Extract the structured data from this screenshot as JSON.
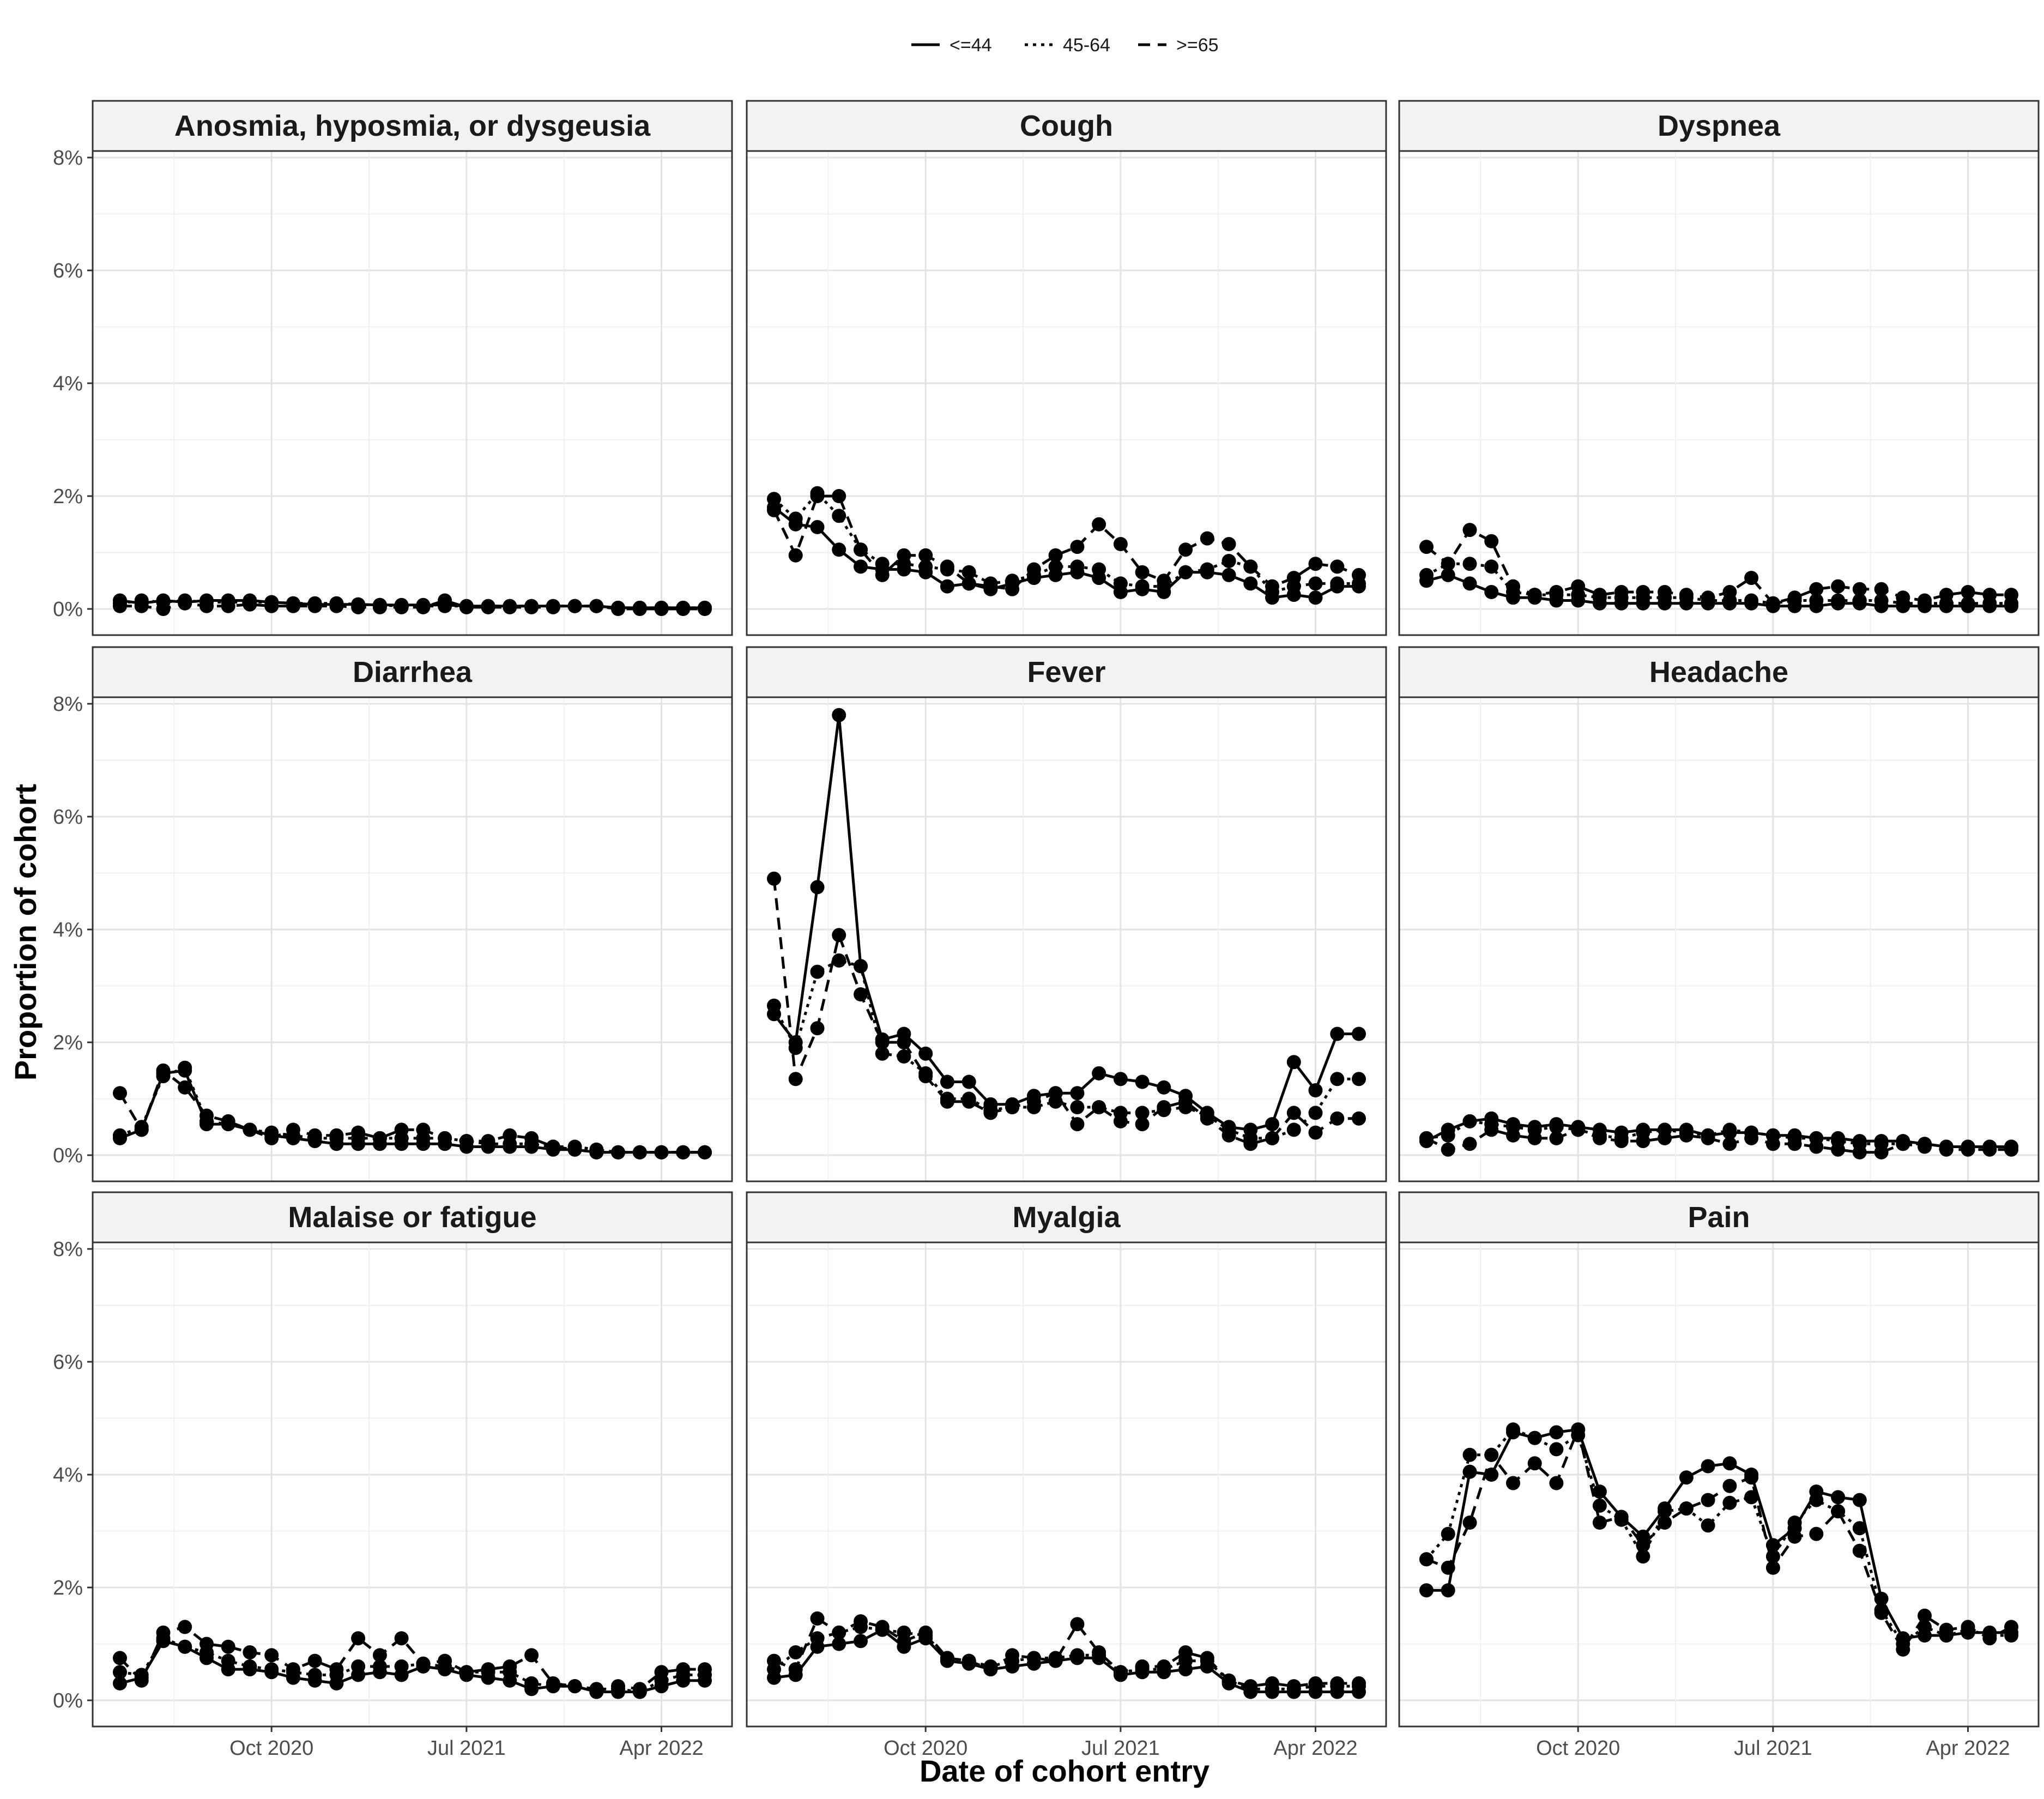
{
  "chart_data": {
    "type": "line",
    "xlabel": "Date of cohort entry",
    "ylabel": "Proportion of cohort",
    "x_start": "2020-03",
    "x_end": "2022-06",
    "xticks": [
      {
        "date": "2020-10",
        "label": "Oct 2020"
      },
      {
        "date": "2021-07",
        "label": "Jul 2021"
      },
      {
        "date": "2022-04",
        "label": "Apr 2022"
      }
    ],
    "ylim": [
      0,
      8
    ],
    "yticks": [
      0,
      2,
      4,
      6,
      8
    ],
    "ytick_labels": [
      "0%",
      "2%",
      "4%",
      "6%",
      "8%"
    ],
    "grid": true,
    "legend_position": "top",
    "legend": [
      {
        "label": "<=44",
        "dash": "solid"
      },
      {
        "label": "45-64",
        "dash": "dotted"
      },
      {
        "label": ">=65",
        "dash": "dashed"
      }
    ],
    "months": [
      "2020-03",
      "2020-04",
      "2020-05",
      "2020-06",
      "2020-07",
      "2020-08",
      "2020-09",
      "2020-10",
      "2020-11",
      "2020-12",
      "2021-01",
      "2021-02",
      "2021-03",
      "2021-04",
      "2021-05",
      "2021-06",
      "2021-07",
      "2021-08",
      "2021-09",
      "2021-10",
      "2021-11",
      "2021-12",
      "2022-01",
      "2022-02",
      "2022-03",
      "2022-04",
      "2022-05",
      "2022-06"
    ],
    "panels": [
      {
        "title": "Anosmia, hyposmia, or dysgeusia",
        "series": [
          {
            "name": "<=44",
            "values": [
              0.15,
              0.1,
              0.15,
              0.12,
              0.15,
              0.15,
              0.15,
              0.12,
              0.1,
              0.08,
              0.08,
              0.08,
              0.07,
              0.07,
              0.07,
              0.07,
              0.05,
              0.05,
              0.05,
              0.05,
              0.05,
              0.05,
              0.05,
              0.02,
              0.02,
              0.02,
              0.02,
              0.02
            ]
          },
          {
            "name": "45-64",
            "values": [
              0.1,
              0.15,
              0.12,
              0.15,
              0.12,
              0.12,
              0.12,
              0.12,
              0.1,
              0.1,
              0.1,
              0.08,
              0.07,
              0.05,
              0.05,
              0.05,
              0.05,
              0.05,
              0.05,
              0.05,
              0.05,
              0.05,
              0.05,
              0.02,
              0.02,
              0.02,
              0.02,
              0.02
            ]
          },
          {
            "name": ">=65",
            "values": [
              0.05,
              0.05,
              0.0,
              0.1,
              0.05,
              0.05,
              0.08,
              0.05,
              0.05,
              0.05,
              0.05,
              0.03,
              0.03,
              0.03,
              0.03,
              0.15,
              0.03,
              0.03,
              0.03,
              0.03,
              0.03,
              0.05,
              0.05,
              0.0,
              0.0,
              0.0,
              0.0,
              0.0
            ]
          }
        ]
      },
      {
        "title": "Cough",
        "series": [
          {
            "name": "<=44",
            "values": [
              1.8,
              1.5,
              1.45,
              1.05,
              0.75,
              0.7,
              0.7,
              0.65,
              0.4,
              0.45,
              0.35,
              0.45,
              0.55,
              0.6,
              0.65,
              0.55,
              0.3,
              0.35,
              0.3,
              0.65,
              0.65,
              0.6,
              0.45,
              0.2,
              0.25,
              0.2,
              0.4,
              0.4
            ]
          },
          {
            "name": "45-64",
            "values": [
              1.95,
              1.6,
              2.05,
              1.65,
              1.05,
              0.8,
              0.8,
              0.75,
              0.7,
              0.65,
              0.45,
              0.5,
              0.6,
              0.75,
              0.75,
              0.7,
              0.45,
              0.4,
              0.4,
              0.65,
              0.7,
              0.85,
              0.75,
              0.3,
              0.4,
              0.45,
              0.45,
              0.45
            ]
          },
          {
            "name": ">=65",
            "values": [
              1.75,
              0.95,
              2.0,
              2.0,
              1.05,
              0.6,
              0.95,
              0.95,
              0.75,
              0.45,
              0.4,
              0.35,
              0.7,
              0.95,
              1.1,
              1.5,
              1.15,
              0.65,
              0.5,
              1.05,
              1.25,
              1.15,
              0.75,
              0.4,
              0.55,
              0.8,
              0.75,
              0.6
            ]
          }
        ]
      },
      {
        "title": "Dyspnea",
        "series": [
          {
            "name": "<=44",
            "values": [
              0.5,
              0.6,
              0.45,
              0.3,
              0.2,
              0.2,
              0.15,
              0.15,
              0.1,
              0.1,
              0.1,
              0.1,
              0.1,
              0.1,
              0.1,
              0.1,
              0.05,
              0.05,
              0.05,
              0.1,
              0.1,
              0.05,
              0.05,
              0.05,
              0.05,
              0.05,
              0.05,
              0.05
            ]
          },
          {
            "name": "45-64",
            "values": [
              0.6,
              0.8,
              0.8,
              0.75,
              0.3,
              0.25,
              0.25,
              0.25,
              0.2,
              0.2,
              0.2,
              0.2,
              0.2,
              0.15,
              0.15,
              0.15,
              0.1,
              0.15,
              0.15,
              0.15,
              0.15,
              0.15,
              0.1,
              0.1,
              0.1,
              0.1,
              0.1,
              0.1
            ]
          },
          {
            "name": ">=65",
            "values": [
              1.1,
              0.8,
              1.4,
              1.2,
              0.4,
              0.25,
              0.3,
              0.4,
              0.25,
              0.3,
              0.3,
              0.3,
              0.25,
              0.2,
              0.3,
              0.55,
              0.1,
              0.2,
              0.35,
              0.4,
              0.35,
              0.35,
              0.2,
              0.15,
              0.25,
              0.3,
              0.25,
              0.25
            ]
          }
        ]
      },
      {
        "title": "Diarrhea",
        "series": [
          {
            "name": "<=44",
            "values": [
              0.3,
              0.45,
              1.45,
              1.5,
              0.55,
              0.55,
              0.45,
              0.35,
              0.3,
              0.25,
              0.2,
              0.2,
              0.2,
              0.2,
              0.2,
              0.2,
              0.15,
              0.15,
              0.15,
              0.15,
              0.1,
              0.1,
              0.05,
              0.05,
              0.05,
              0.05,
              0.05,
              0.05
            ]
          },
          {
            "name": "45-64",
            "values": [
              0.35,
              0.5,
              1.4,
              1.55,
              0.6,
              0.55,
              0.45,
              0.4,
              0.35,
              0.3,
              0.3,
              0.3,
              0.3,
              0.3,
              0.3,
              0.3,
              0.25,
              0.2,
              0.2,
              0.2,
              0.15,
              0.15,
              0.1,
              0.05,
              0.05,
              0.05,
              0.05,
              0.05
            ]
          },
          {
            "name": ">=65",
            "values": [
              1.1,
              0.45,
              1.5,
              1.2,
              0.7,
              0.6,
              0.45,
              0.3,
              0.45,
              0.35,
              0.35,
              0.4,
              0.3,
              0.45,
              0.45,
              0.3,
              0.25,
              0.25,
              0.35,
              0.3,
              0.15,
              0.1,
              0.05,
              0.05,
              0.05,
              0.05,
              0.05,
              0.05
            ]
          }
        ]
      },
      {
        "title": "Fever",
        "series": [
          {
            "name": "<=44",
            "values": [
              2.5,
              2.0,
              4.75,
              7.8,
              3.35,
              2.05,
              2.15,
              1.8,
              1.3,
              1.3,
              0.9,
              0.9,
              1.05,
              1.1,
              1.1,
              1.45,
              1.35,
              1.3,
              1.2,
              1.05,
              0.75,
              0.5,
              0.45,
              0.55,
              1.65,
              1.15,
              2.15,
              2.15
            ]
          },
          {
            "name": "45-64",
            "values": [
              2.65,
              1.9,
              3.25,
              3.45,
              3.35,
              1.8,
              1.75,
              1.45,
              1.0,
              1.0,
              0.8,
              0.85,
              0.85,
              0.95,
              0.85,
              0.85,
              0.75,
              0.75,
              0.8,
              0.85,
              0.7,
              0.45,
              0.3,
              0.3,
              0.45,
              0.75,
              1.35,
              1.35
            ]
          },
          {
            "name": ">=65",
            "values": [
              4.9,
              1.35,
              2.25,
              3.9,
              2.85,
              2.0,
              2.0,
              1.4,
              0.95,
              0.95,
              0.75,
              0.85,
              0.95,
              1.1,
              0.55,
              0.85,
              0.6,
              0.55,
              0.85,
              0.95,
              0.65,
              0.35,
              0.2,
              0.3,
              0.75,
              0.4,
              0.65,
              0.65
            ]
          }
        ]
      },
      {
        "title": "Headache",
        "series": [
          {
            "name": "<=44",
            "values": [
              0.25,
              0.45,
              0.6,
              0.65,
              0.55,
              0.5,
              0.55,
              0.5,
              0.45,
              0.4,
              0.45,
              0.45,
              0.45,
              0.35,
              0.4,
              0.4,
              0.35,
              0.35,
              0.3,
              0.3,
              0.25,
              0.25,
              0.25,
              0.2,
              0.15,
              0.15,
              0.15,
              0.15
            ]
          },
          {
            "name": "45-64",
            "values": [
              0.3,
              0.35,
              0.6,
              0.55,
              0.5,
              0.45,
              0.5,
              0.45,
              0.35,
              0.3,
              0.4,
              0.45,
              0.4,
              0.35,
              0.45,
              0.4,
              0.35,
              0.3,
              0.3,
              0.25,
              0.2,
              0.2,
              0.2,
              0.2,
              0.15,
              0.15,
              0.15,
              0.15
            ]
          },
          {
            "name": ">=65",
            "values": [
              0.3,
              0.1,
              0.2,
              0.45,
              0.35,
              0.3,
              0.3,
              0.45,
              0.3,
              0.25,
              0.25,
              0.3,
              0.35,
              0.3,
              0.2,
              0.3,
              0.2,
              0.2,
              0.15,
              0.1,
              0.05,
              0.05,
              0.2,
              0.15,
              0.1,
              0.1,
              0.1,
              0.1
            ]
          }
        ]
      },
      {
        "title": "Malaise or fatigue",
        "series": [
          {
            "name": "<=44",
            "values": [
              0.3,
              0.4,
              1.05,
              0.95,
              0.75,
              0.55,
              0.55,
              0.5,
              0.4,
              0.35,
              0.3,
              0.45,
              0.5,
              0.45,
              0.6,
              0.55,
              0.45,
              0.4,
              0.35,
              0.2,
              0.25,
              0.25,
              0.15,
              0.15,
              0.15,
              0.25,
              0.35,
              0.35
            ]
          },
          {
            "name": "45-64",
            "values": [
              0.5,
              0.45,
              1.1,
              0.95,
              0.85,
              0.7,
              0.6,
              0.55,
              0.5,
              0.45,
              0.45,
              0.6,
              0.6,
              0.6,
              0.65,
              0.6,
              0.5,
              0.5,
              0.5,
              0.3,
              0.25,
              0.25,
              0.2,
              0.2,
              0.15,
              0.35,
              0.45,
              0.45
            ]
          },
          {
            "name": ">=65",
            "values": [
              0.75,
              0.35,
              1.2,
              1.3,
              1.0,
              0.95,
              0.85,
              0.8,
              0.55,
              0.7,
              0.55,
              1.1,
              0.8,
              1.1,
              0.65,
              0.7,
              0.5,
              0.55,
              0.6,
              0.8,
              0.3,
              0.25,
              0.15,
              0.25,
              0.2,
              0.5,
              0.55,
              0.55
            ]
          }
        ]
      },
      {
        "title": "Myalgia",
        "series": [
          {
            "name": "<=44",
            "values": [
              0.4,
              0.45,
              0.95,
              1.0,
              1.05,
              1.25,
              0.95,
              1.1,
              0.7,
              0.65,
              0.55,
              0.6,
              0.65,
              0.7,
              0.75,
              0.75,
              0.45,
              0.5,
              0.5,
              0.55,
              0.6,
              0.3,
              0.15,
              0.15,
              0.15,
              0.15,
              0.15,
              0.15
            ]
          },
          {
            "name": "45-64",
            "values": [
              0.55,
              0.85,
              1.1,
              1.2,
              1.3,
              1.25,
              1.2,
              1.15,
              0.75,
              0.7,
              0.6,
              0.7,
              0.75,
              0.75,
              0.8,
              0.8,
              0.5,
              0.55,
              0.55,
              0.7,
              0.7,
              0.35,
              0.2,
              0.2,
              0.2,
              0.25,
              0.25,
              0.25
            ]
          },
          {
            "name": ">=65",
            "values": [
              0.7,
              0.55,
              1.45,
              1.2,
              1.4,
              1.3,
              1.05,
              1.2,
              0.75,
              0.7,
              0.55,
              0.8,
              0.75,
              0.7,
              1.35,
              0.85,
              0.5,
              0.6,
              0.6,
              0.85,
              0.75,
              0.35,
              0.25,
              0.3,
              0.25,
              0.3,
              0.3,
              0.3
            ]
          }
        ]
      },
      {
        "title": "Pain",
        "series": [
          {
            "name": "<=44",
            "values": [
              1.95,
              1.95,
              4.05,
              4.0,
              4.75,
              4.65,
              4.75,
              4.8,
              3.7,
              3.25,
              2.9,
              3.4,
              3.95,
              4.15,
              4.2,
              4.0,
              2.75,
              3.05,
              3.7,
              3.6,
              3.55,
              1.8,
              1.1,
              1.15,
              1.15,
              1.2,
              1.2,
              1.2
            ]
          },
          {
            "name": "45-64",
            "values": [
              2.5,
              2.95,
              4.35,
              4.35,
              4.8,
              4.65,
              4.45,
              4.7,
              3.45,
              3.2,
              2.55,
              3.35,
              3.4,
              3.1,
              3.5,
              3.6,
              2.55,
              3.15,
              3.55,
              3.35,
              3.05,
              1.6,
              1.0,
              1.3,
              1.15,
              1.25,
              1.15,
              1.15
            ]
          },
          {
            "name": ">=65",
            "values": [
              2.5,
              2.35,
              3.15,
              4.35,
              3.85,
              4.2,
              3.85,
              4.8,
              3.15,
              3.25,
              2.75,
              3.15,
              3.4,
              3.55,
              3.8,
              3.95,
              2.35,
              2.9,
              2.95,
              3.35,
              2.65,
              1.55,
              0.9,
              1.5,
              1.25,
              1.3,
              1.1,
              1.3
            ]
          }
        ]
      }
    ]
  }
}
